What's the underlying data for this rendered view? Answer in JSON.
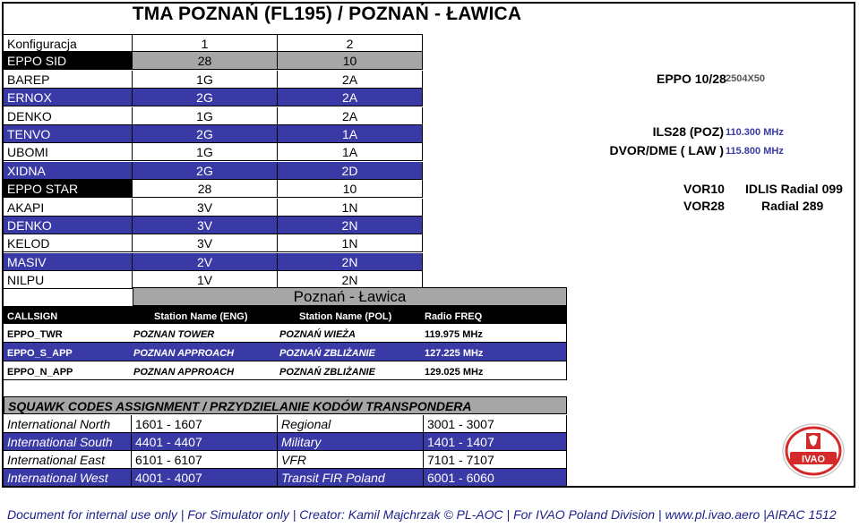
{
  "title": "TMA POZNAŃ (FL195)  / POZNAŃ - ŁAWICA",
  "config": {
    "header": [
      "Konfiguracja",
      "1",
      "2"
    ],
    "sid_header": [
      "EPPO SID",
      "28",
      "10"
    ],
    "sids": [
      [
        "BAREP",
        "1G",
        "2A"
      ],
      [
        "ERNOX",
        "2G",
        "2A"
      ],
      [
        "DENKO",
        "1G",
        "2A"
      ],
      [
        "TENVO",
        "2G",
        "1A"
      ],
      [
        "UBOMI",
        "1G",
        "1A"
      ],
      [
        "XIDNA",
        "2G",
        "2D"
      ]
    ],
    "star_header": [
      "EPPO STAR",
      "28",
      "10"
    ],
    "stars": [
      [
        "AKAPI",
        "3V",
        "1N"
      ],
      [
        "DENKO",
        "3V",
        "2N"
      ],
      [
        "KELOD",
        "3V",
        "1N"
      ],
      [
        "MASIV",
        "2V",
        "2N"
      ],
      [
        "NILPU",
        "1V",
        "2N"
      ]
    ]
  },
  "runway": {
    "label": "EPPO 10/28",
    "size": "2504X50"
  },
  "navaids": [
    {
      "label": "ILS28 (POZ)",
      "freq": "110.300 MHz"
    },
    {
      "label": "DVOR/DME ( LAW )",
      "freq": "115.800 MHz"
    }
  ],
  "radials": [
    {
      "label": "VOR10",
      "value": "IDLIS Radial 099"
    },
    {
      "label": "VOR28",
      "value": "Radial 289"
    }
  ],
  "stations": {
    "title": "Poznań - Ławica",
    "headers": [
      "CALLSIGN",
      "Station Name (ENG)",
      "Station Name (POL)",
      "Radio FREQ"
    ],
    "rows": [
      [
        "EPPO_TWR",
        "POZNAN TOWER",
        "POZNAŃ WIEŻA",
        "119.975 MHz"
      ],
      [
        "EPPO_S_APP",
        "POZNAN APPROACH",
        "POZNAŃ ZBLIŻANIE",
        "127.225 MHz"
      ],
      [
        "EPPO_N_APP",
        "POZNAN APPROACH",
        "POZNAŃ ZBLIŻANIE",
        "129.025 MHz"
      ]
    ]
  },
  "squawk": {
    "title": "SQUAWK CODES ASSIGNMENT / PRZYDZIELANIE KODÓW TRANSPONDERA",
    "rows": [
      [
        "International North",
        "1601 - 1607",
        "Regional",
        "3001 - 3007"
      ],
      [
        "International South",
        "4401 - 4407",
        "Military",
        "1401 - 1407"
      ],
      [
        "International East",
        "6101 - 6107",
        "VFR",
        "7101 - 7107"
      ],
      [
        "International West",
        "4001 - 4007",
        "Transit FIR Poland",
        "6001 - 6060"
      ]
    ]
  },
  "logo_text": "IVAO",
  "footer": "Document for internal use only | For Simulator only | Creator: Kamil Majchrzak © PL-AOC | For IVAO Poland Division | www.pl.ivao.aero |AIRAC 1512",
  "colors": {
    "blue": "#3a3aa6",
    "grey": "#a6a6a6",
    "ivao_red": "#d42a2a"
  }
}
